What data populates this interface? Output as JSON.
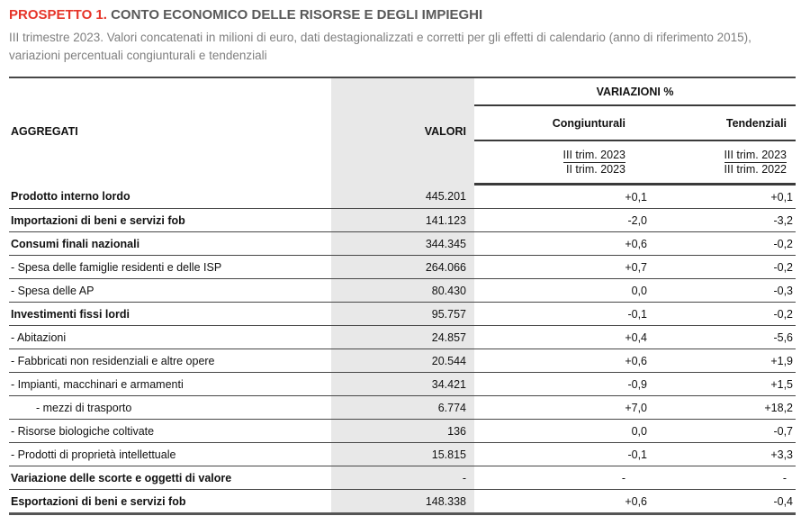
{
  "header": {
    "prospetto_label": "PROSPETTO 1.",
    "title": "CONTO ECONOMICO DELLE RISORSE E DEGLI IMPIEGHI",
    "subtitle": "III trimestre 2023. Valori concatenati in milioni di euro, dati destagionalizzati e corretti per gli effetti di calendario (anno di riferimento 2015), variazioni percentuali congiunturali e tendenziali"
  },
  "colors": {
    "accent_red": "#e6352a",
    "title_gray": "#595959",
    "subtitle_gray": "#7f7f7f",
    "valori_band_gray": "#e8e8e8"
  },
  "table": {
    "col_aggregati": "AGGREGATI",
    "col_valori": "VALORI",
    "variazioni_header": "VARIAZIONI %",
    "congiunturali": {
      "label": "Congiunturali",
      "period_top": "III trim. 2023",
      "period_bottom": "II trim. 2023"
    },
    "tendenziali": {
      "label": "Tendenziali",
      "period_top": "III trim. 2023",
      "period_bottom": "III trim. 2022"
    },
    "rows": [
      {
        "label": "Prodotto interno lordo",
        "valori": "445.201",
        "cong": "+0,1",
        "tend": "+0,1"
      },
      {
        "label": "Importazioni di beni e servizi fob",
        "valori": "141.123",
        "cong": "-2,0",
        "tend": "-3,2"
      },
      {
        "label": "Consumi finali nazionali",
        "valori": "344.345",
        "cong": "+0,6",
        "tend": "-0,2"
      },
      {
        "label": "- Spesa delle famiglie residenti e delle ISP",
        "valori": "264.066",
        "cong": "+0,7",
        "tend": "-0,2"
      },
      {
        "label": "- Spesa delle AP",
        "valori": "80.430",
        "cong": "0,0",
        "tend": "-0,3"
      },
      {
        "label": "Investimenti fissi lordi",
        "valori": "95.757",
        "cong": "-0,1",
        "tend": "-0,2"
      },
      {
        "label": "- Abitazioni",
        "valori": "24.857",
        "cong": "+0,4",
        "tend": "-5,6"
      },
      {
        "label": "- Fabbricati non residenziali e altre opere",
        "valori": "20.544",
        "cong": "+0,6",
        "tend": "+1,9"
      },
      {
        "label": "- Impianti, macchinari e armamenti",
        "valori": "34.421",
        "cong": "-0,9",
        "tend": "+1,5"
      },
      {
        "label": "- mezzi di trasporto",
        "valori": "6.774",
        "cong": "+7,0",
        "tend": "+18,2"
      },
      {
        "label": "- Risorse biologiche coltivate",
        "valori": "136",
        "cong": "0,0",
        "tend": "-0,7"
      },
      {
        "label": "- Prodotti di proprietà intellettuale",
        "valori": "15.815",
        "cong": "-0,1",
        "tend": "+3,3"
      },
      {
        "label": "Variazione delle scorte e oggetti di valore",
        "valori": "-",
        "cong": "-",
        "tend": "-"
      },
      {
        "label": "Esportazioni di beni e servizi fob",
        "valori": "148.338",
        "cong": "+0,6",
        "tend": "-0,4"
      }
    ]
  }
}
